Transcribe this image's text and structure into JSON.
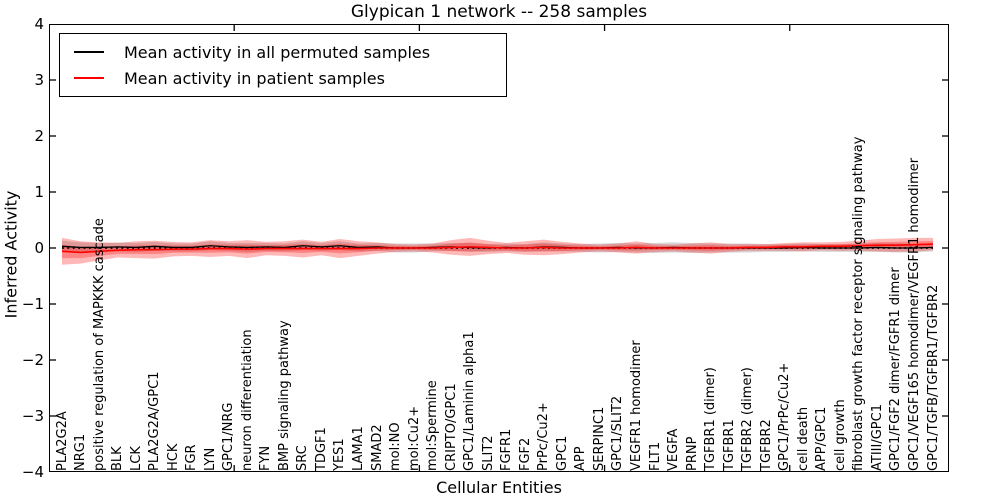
{
  "figure": {
    "title": "Glypican 1 network -- 258 samples",
    "xlabel": "Cellular Entities",
    "ylabel": "Inferred Activity"
  },
  "legend": {
    "entries": [
      {
        "label": "Mean activity in all permuted samples",
        "color": "#000000"
      },
      {
        "label": "Mean activity in patient samples",
        "color": "#ff0000"
      }
    ]
  },
  "chart_data": {
    "type": "line",
    "title": "Glypican 1 network -- 258 samples",
    "xlabel": "Cellular Entities",
    "ylabel": "Inferred Activity",
    "ylim": [
      -4,
      4
    ],
    "yticks": [
      4,
      3,
      2,
      1,
      0,
      -1,
      -2,
      -3,
      -4
    ],
    "xticks": [
      10,
      20,
      30,
      40
    ],
    "xlim": [
      0,
      48.6
    ],
    "x_offset": 0.7,
    "grid": false,
    "legend_position": "upper left",
    "zero_line": {
      "style": "dotted",
      "color": "#000000",
      "y": 0
    },
    "categories": [
      "PLA2G2A",
      "NRG1",
      "positive regulation of MAPKKK cascade",
      "BLK",
      "LCK",
      "PLA2G2A/GPC1",
      "HCK",
      "FGR",
      "LYN",
      "GPC1/NRG",
      "neuron differentiation",
      "FYN",
      "BMP signaling pathway",
      "SRC",
      "TDGF1",
      "YES1",
      "LAMA1",
      "SMAD2",
      "mol:NO",
      "mol:Cu2+",
      "mol:Spermine",
      "CRIPTO/GPC1",
      "GPC1/Laminin alpha1",
      "SLIT2",
      "FGFR1",
      "FGF2",
      "PrPc/Cu2+",
      "GPC1",
      "APP",
      "SERPINC1",
      "GPC1/SLIT2",
      "VEGFR1 homodimer",
      "FLT1",
      "VEGFA",
      "PRNP",
      "TGFBR1 (dimer)",
      "TGFBR1",
      "TGFBR2 (dimer)",
      "TGFBR2",
      "GPC1/PrPc/Cu2+",
      "cell death",
      "APP/GPC1",
      "cell growth",
      "fibroblast growth factor receptor signaling pathway",
      "ATIII/GPC1",
      "GPC1/FGF2 dimer/FGFR1 dimer",
      "GPC1/VEGF165 homodimer/VEGFR1 homodimer",
      "GPC1/TGFB/TGFBR1/TGFBR2"
    ],
    "series": [
      {
        "name": "Mean activity in all permuted samples",
        "color": "#000000",
        "linewidth": 1.3,
        "values": [
          0.03,
          0.01,
          0.01,
          0.02,
          0.01,
          0.03,
          0.01,
          0.01,
          0.04,
          0.02,
          0.01,
          0.02,
          0.01,
          0.04,
          0.02,
          0.04,
          0.01,
          0.02,
          0.0,
          0.0,
          0.01,
          0.02,
          0.01,
          0.0,
          0.01,
          0.0,
          0.02,
          0.01,
          0.0,
          0.0,
          0.01,
          0.0,
          0.0,
          0.01,
          0.0,
          0.0,
          0.0,
          0.0,
          0.0,
          0.0,
          0.01,
          0.0,
          0.0,
          0.0,
          0.01,
          0.0,
          0.0,
          0.01
        ]
      },
      {
        "name": "Mean activity in patient samples",
        "color": "#ff0000",
        "linewidth": 1.6,
        "values": [
          -0.06,
          -0.08,
          -0.06,
          -0.04,
          -0.03,
          -0.03,
          -0.02,
          -0.02,
          -0.01,
          -0.01,
          -0.02,
          -0.01,
          -0.01,
          -0.01,
          -0.01,
          -0.01,
          -0.01,
          0.0,
          0.0,
          0.0,
          0.0,
          0.01,
          0.02,
          0.01,
          0.0,
          0.0,
          0.01,
          0.0,
          0.0,
          0.0,
          0.0,
          0.01,
          0.0,
          0.0,
          0.0,
          0.0,
          0.0,
          0.01,
          0.01,
          0.02,
          0.02,
          0.03,
          0.03,
          0.04,
          0.05,
          0.05,
          0.06,
          0.07
        ]
      }
    ],
    "bands": [
      {
        "series": "Mean activity in all permuted samples",
        "color": "rgba(120,120,120,0.30)",
        "half_widths": [
          0.1,
          0.09,
          0.08,
          0.08,
          0.08,
          0.08,
          0.07,
          0.07,
          0.08,
          0.07,
          0.08,
          0.07,
          0.07,
          0.08,
          0.07,
          0.08,
          0.07,
          0.07,
          0.08,
          0.08,
          0.07,
          0.07,
          0.08,
          0.07,
          0.07,
          0.07,
          0.08,
          0.07,
          0.07,
          0.08,
          0.08,
          0.08,
          0.09,
          0.09,
          0.09,
          0.08,
          0.08,
          0.08,
          0.07,
          0.07,
          0.07,
          0.07,
          0.07,
          0.07,
          0.08,
          0.08,
          0.08,
          0.07
        ]
      },
      {
        "series": "Mean activity in patient samples",
        "color": "rgba(255,0,0,0.28)",
        "half_widths": [
          0.24,
          0.2,
          0.16,
          0.13,
          0.15,
          0.16,
          0.13,
          0.12,
          0.15,
          0.13,
          0.16,
          0.12,
          0.13,
          0.16,
          0.12,
          0.17,
          0.13,
          0.1,
          0.07,
          0.06,
          0.08,
          0.13,
          0.16,
          0.12,
          0.09,
          0.12,
          0.14,
          0.11,
          0.08,
          0.06,
          0.08,
          0.11,
          0.07,
          0.06,
          0.08,
          0.1,
          0.07,
          0.06,
          0.06,
          0.07,
          0.08,
          0.07,
          0.08,
          0.09,
          0.11,
          0.12,
          0.12,
          0.11
        ]
      },
      {
        "series": "Mean activity in patient samples",
        "scale": 0.5,
        "color": "rgba(255,0,0,0.28)",
        "half_widths": [
          0.24,
          0.2,
          0.16,
          0.13,
          0.15,
          0.16,
          0.13,
          0.12,
          0.15,
          0.13,
          0.16,
          0.12,
          0.13,
          0.16,
          0.12,
          0.17,
          0.13,
          0.1,
          0.07,
          0.06,
          0.08,
          0.13,
          0.16,
          0.12,
          0.09,
          0.12,
          0.14,
          0.11,
          0.08,
          0.06,
          0.08,
          0.11,
          0.07,
          0.06,
          0.08,
          0.1,
          0.07,
          0.06,
          0.06,
          0.07,
          0.08,
          0.07,
          0.08,
          0.09,
          0.11,
          0.12,
          0.12,
          0.11
        ]
      }
    ]
  }
}
